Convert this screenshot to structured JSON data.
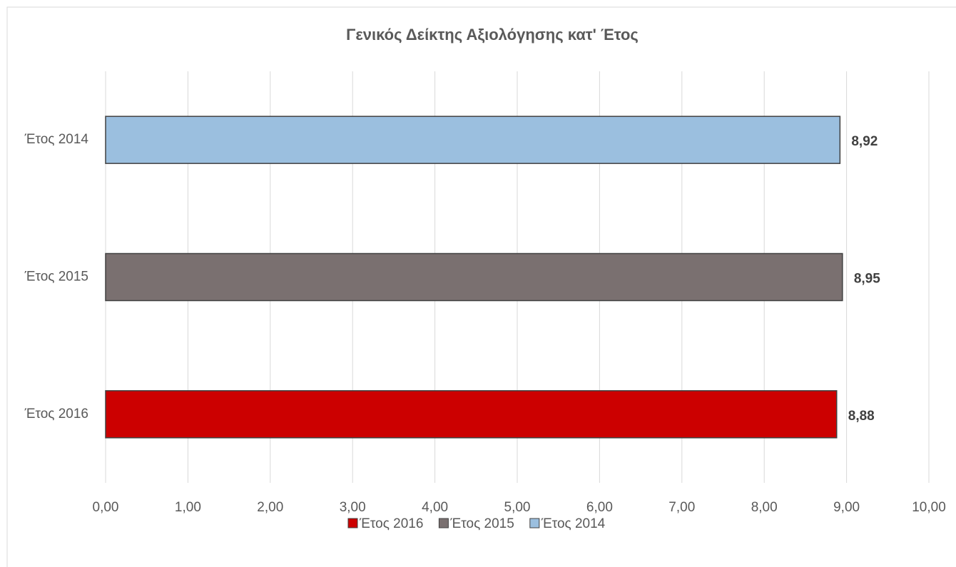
{
  "chart_data": {
    "type": "hbar",
    "title": "Γενικός Δείκτης Αξιολόγησης κατ' Έτος",
    "categories": [
      "Έτος 2016",
      "Έτος 2015",
      "Έτος 2014"
    ],
    "values": [
      8.88,
      8.95,
      8.92
    ],
    "value_labels": [
      "8,88",
      "8,95",
      "8,92"
    ],
    "colors": [
      "#cc0000",
      "#7a7070",
      "#9bbfdf"
    ],
    "xlim": [
      0,
      10
    ],
    "xticks": [
      {
        "value": 0,
        "label": "0,00"
      },
      {
        "value": 1,
        "label": "1,00"
      },
      {
        "value": 2,
        "label": "2,00"
      },
      {
        "value": 3,
        "label": "3,00"
      },
      {
        "value": 4,
        "label": "4,00"
      },
      {
        "value": 5,
        "label": "5,00"
      },
      {
        "value": 6,
        "label": "6,00"
      },
      {
        "value": 7,
        "label": "7,00"
      },
      {
        "value": 8,
        "label": "8,00"
      },
      {
        "value": 9,
        "label": "9,00"
      },
      {
        "value": 10,
        "label": "10,00"
      }
    ],
    "grid": true,
    "legend": "bottom"
  }
}
